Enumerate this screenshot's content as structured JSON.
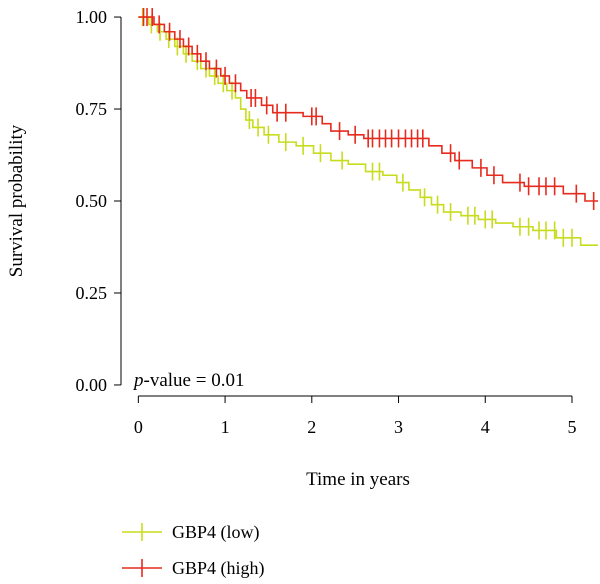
{
  "chart_data": {
    "type": "line",
    "subtype": "kaplan-meier survival curve",
    "title": "",
    "xlabel": "Time in years",
    "ylabel": "Survival probability",
    "xlim": [
      -0.2,
      5.3
    ],
    "ylim": [
      -0.03,
      1.03
    ],
    "x_ticks": [
      0,
      1,
      2,
      3,
      4,
      5
    ],
    "y_ticks": [
      0.0,
      0.25,
      0.5,
      0.75,
      1.0
    ],
    "x_tick_labels": [
      "0",
      "1",
      "2",
      "3",
      "4",
      "5"
    ],
    "y_tick_labels": [
      "0.00",
      "0.25",
      "0.50",
      "0.75",
      "1.00"
    ],
    "grid": false,
    "legend_position": "bottom-left",
    "annotation": {
      "italic_part": "p",
      "rest": "-value = 0.01"
    },
    "series": [
      {
        "name": "GBP4 (low)",
        "color": "#c8dc1e",
        "steps": [
          [
            0.0,
            1.0
          ],
          [
            0.12,
            0.98
          ],
          [
            0.22,
            0.96
          ],
          [
            0.32,
            0.94
          ],
          [
            0.42,
            0.92
          ],
          [
            0.52,
            0.9
          ],
          [
            0.62,
            0.88
          ],
          [
            0.72,
            0.86
          ],
          [
            0.82,
            0.84
          ],
          [
            0.92,
            0.82
          ],
          [
            1.02,
            0.8
          ],
          [
            1.12,
            0.78
          ],
          [
            1.18,
            0.75
          ],
          [
            1.24,
            0.72
          ],
          [
            1.32,
            0.7
          ],
          [
            1.45,
            0.68
          ],
          [
            1.62,
            0.66
          ],
          [
            1.82,
            0.65
          ],
          [
            2.02,
            0.63
          ],
          [
            2.22,
            0.61
          ],
          [
            2.42,
            0.6
          ],
          [
            2.62,
            0.58
          ],
          [
            2.82,
            0.57
          ],
          [
            2.98,
            0.55
          ],
          [
            3.12,
            0.53
          ],
          [
            3.25,
            0.51
          ],
          [
            3.38,
            0.49
          ],
          [
            3.52,
            0.47
          ],
          [
            3.72,
            0.46
          ],
          [
            3.92,
            0.45
          ],
          [
            4.12,
            0.44
          ],
          [
            4.32,
            0.43
          ],
          [
            4.55,
            0.42
          ],
          [
            4.82,
            0.4
          ],
          [
            5.1,
            0.38
          ],
          [
            5.3,
            0.38
          ]
        ],
        "censor_x": [
          0.05,
          0.15,
          0.25,
          0.35,
          0.45,
          0.55,
          0.68,
          0.78,
          0.88,
          0.98,
          1.08,
          1.28,
          1.38,
          1.5,
          1.7,
          1.9,
          2.1,
          2.35,
          2.7,
          2.78,
          3.05,
          3.3,
          3.45,
          3.6,
          3.8,
          3.88,
          4.0,
          4.08,
          4.4,
          4.5,
          4.62,
          4.7,
          4.8,
          4.9,
          5.0
        ]
      },
      {
        "name": "GBP4 (high)",
        "color": "#e62b1e",
        "steps": [
          [
            0.0,
            1.0
          ],
          [
            0.18,
            0.98
          ],
          [
            0.3,
            0.96
          ],
          [
            0.42,
            0.94
          ],
          [
            0.52,
            0.92
          ],
          [
            0.62,
            0.9
          ],
          [
            0.72,
            0.88
          ],
          [
            0.82,
            0.86
          ],
          [
            0.95,
            0.84
          ],
          [
            1.05,
            0.82
          ],
          [
            1.18,
            0.8
          ],
          [
            1.25,
            0.78
          ],
          [
            1.42,
            0.76
          ],
          [
            1.55,
            0.74
          ],
          [
            1.9,
            0.73
          ],
          [
            2.12,
            0.71
          ],
          [
            2.22,
            0.69
          ],
          [
            2.42,
            0.68
          ],
          [
            2.6,
            0.67
          ],
          [
            3.35,
            0.65
          ],
          [
            3.5,
            0.63
          ],
          [
            3.65,
            0.61
          ],
          [
            3.85,
            0.59
          ],
          [
            4.02,
            0.57
          ],
          [
            4.2,
            0.55
          ],
          [
            4.45,
            0.54
          ],
          [
            4.9,
            0.52
          ],
          [
            5.15,
            0.5
          ],
          [
            5.3,
            0.5
          ]
        ],
        "censor_x": [
          0.06,
          0.1,
          0.16,
          0.24,
          0.36,
          0.48,
          0.58,
          0.68,
          0.78,
          0.9,
          1.0,
          1.12,
          1.3,
          1.35,
          1.48,
          1.6,
          1.7,
          2.0,
          2.05,
          2.32,
          2.5,
          2.65,
          2.7,
          2.78,
          2.85,
          2.92,
          3.0,
          3.08,
          3.15,
          3.22,
          3.28,
          3.6,
          3.7,
          3.95,
          4.1,
          4.4,
          4.5,
          4.62,
          4.7,
          4.8,
          5.05,
          5.25
        ]
      }
    ]
  }
}
